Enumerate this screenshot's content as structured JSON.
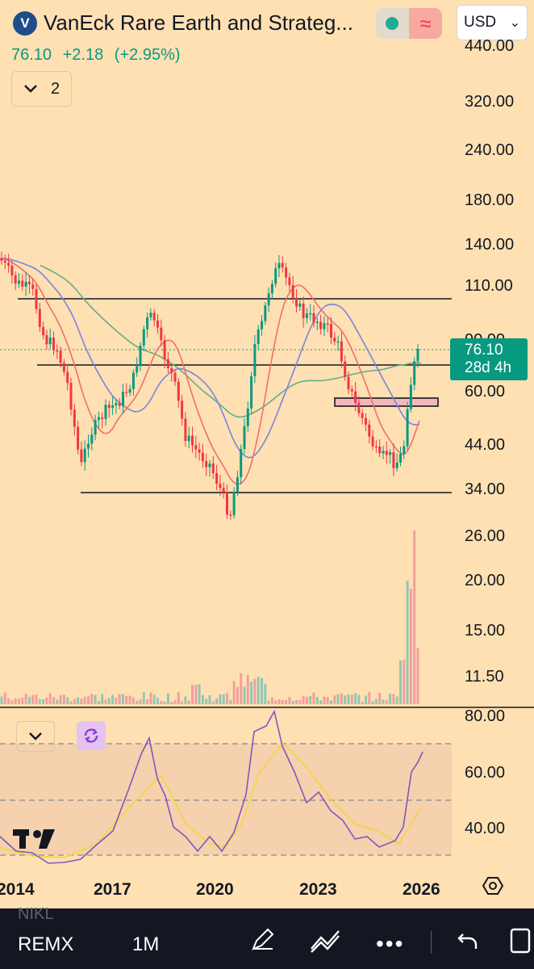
{
  "header": {
    "logo_letter": "V",
    "title": "VanEck Rare Earth and Strateg...",
    "currency": "USD",
    "price": "76.10",
    "change": "+2.18",
    "change_pct": "(+2.95%)",
    "indicator_count": "2",
    "status_color": "#22ab94",
    "wave_color": "#f23645"
  },
  "price_axis": [
    "440.00",
    "320.00",
    "240.00",
    "180.00",
    "140.00",
    "110.00",
    "90.00",
    "60.00",
    "44.00",
    "34.00",
    "26.00",
    "20.00",
    "15.00",
    "11.50"
  ],
  "last_price_tag": {
    "price": "76.10",
    "countdown": "28d 4h"
  },
  "oscillator_axis": [
    "80.00",
    "60.00",
    "40.00"
  ],
  "time_axis": [
    "2014",
    "2017",
    "2020",
    "2023",
    "2026"
  ],
  "toolbar": {
    "ghost_symbol": "NIKL",
    "symbol": "REMX",
    "interval": "1M"
  },
  "colors": {
    "up": "#089981",
    "down": "#f23645",
    "ma_fast": "#f26d6d",
    "ma_mid": "#7b83e0",
    "ma_slow": "#5fae8c",
    "rsi": "#7e57c2",
    "rsi_ma": "#f5d547"
  }
}
